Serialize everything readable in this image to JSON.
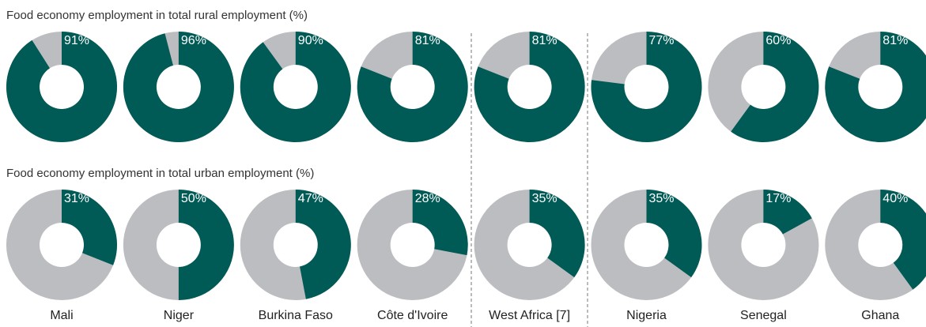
{
  "chart_data": {
    "type": "donut",
    "categories": [
      "Mali",
      "Niger",
      "Burkina Faso",
      "Côte d'Ivoire",
      "West Africa [7]",
      "Nigeria",
      "Senegal",
      "Ghana"
    ],
    "remainder_color": "#bcbdc0",
    "series": [
      {
        "name": "Food economy employment in total rural employment (%)",
        "color": "#005a55",
        "values": [
          91,
          96,
          90,
          81,
          81,
          77,
          60,
          81
        ],
        "value_labels": [
          "91%",
          "96%",
          "90%",
          "81%",
          "81%",
          "77%",
          "60%",
          "81%"
        ]
      },
      {
        "name": "Food economy employment in total urban employment (%)",
        "color": "#005a55",
        "values": [
          31,
          50,
          47,
          28,
          35,
          35,
          17,
          40
        ],
        "value_labels": [
          "31%",
          "50%",
          "47%",
          "28%",
          "35%",
          "35%",
          "17%",
          "40%"
        ]
      }
    ]
  }
}
